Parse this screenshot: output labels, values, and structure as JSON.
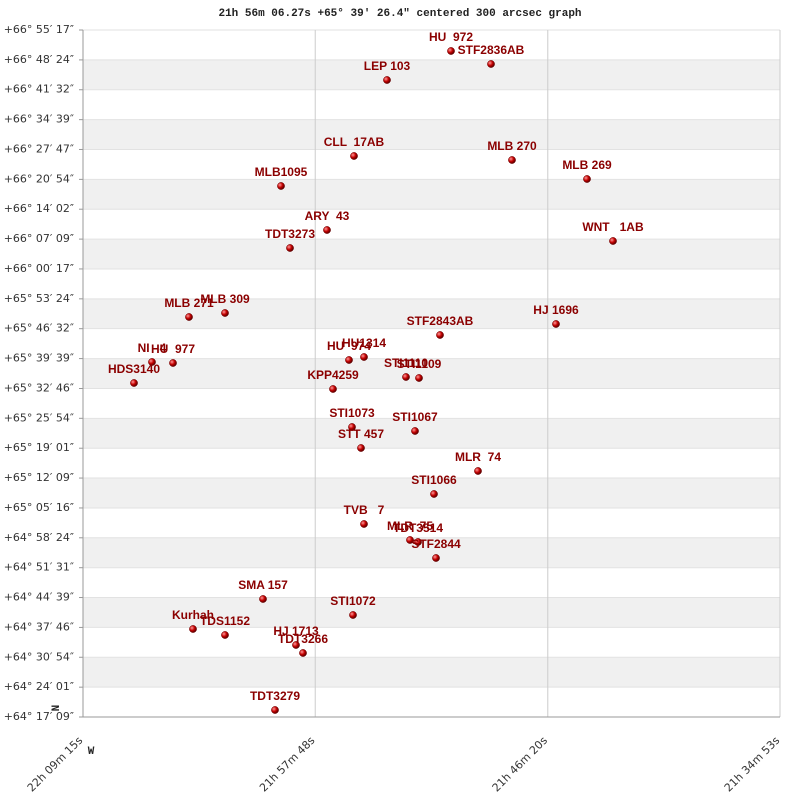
{
  "chart_data": {
    "type": "scatter",
    "title": "21h 56m 06.27s +65° 39′ 26.4″ centered 300 arcsec graph",
    "north_label": "N",
    "west_label": "W",
    "color": "#c40000",
    "label_color": "#8b0000",
    "grid": true,
    "banded": true,
    "labels": [
      "HU  972",
      "STF2836AB",
      "LEP 103",
      "CLL  17AB",
      "MLB 270",
      "MLB 269",
      "MLB1095",
      "ARY  43",
      "TDT3273",
      "WNT   1AB",
      "MLB 309",
      "MLB 271",
      "STF2843AB",
      "HJ 1696",
      "NI   4",
      "HU  977",
      "HDS3140",
      "HU  974",
      "HU1314",
      "KPP4259",
      "STI1110",
      "STI1109",
      "STI1073",
      "STI1067",
      "STT 457",
      "MLR  74",
      "STI1066",
      "TVB   7",
      "MLR  75",
      "TDT3514",
      "STF2844",
      "SMA 157",
      "STI1072",
      "Kurhah",
      "TDS1152",
      "HJ 1713",
      "TDT3266",
      "TDT3279"
    ],
    "x": [
      21.85175,
      21.81888,
      21.90435,
      21.93147,
      21.80163,
      21.73999,
      21.99146,
      21.95366,
      21.98406,
      21.71863,
      22.03748,
      22.06706,
      21.86079,
      21.76547,
      22.09747,
      22.08021,
      22.11226,
      21.93558,
      21.92325,
      21.94872,
      21.88874,
      21.87805,
      21.93311,
      21.88134,
      21.92572,
      21.82957,
      21.86573,
      21.92325,
      21.88545,
      21.87887,
      21.86408,
      22.00625,
      21.93229,
      22.06377,
      22.03748,
      21.97913,
      21.97338,
      21.99639
    ],
    "values": [
      66.84083,
      66.79096,
      66.72957,
      66.43802,
      66.42267,
      66.34978,
      66.32293,
      66.15413,
      66.08508,
      66.11193,
      65.83572,
      65.82037,
      65.75132,
      65.79352,
      65.64774,
      65.6439,
      65.56718,
      65.65541,
      65.6669,
      65.54416,
      65.59019,
      65.58636,
      65.39838,
      65.38303,
      65.31782,
      65.22958,
      65.14134,
      65.02626,
      64.96488,
      64.9572,
      64.89582,
      64.73854,
      64.67715,
      64.62345,
      64.60043,
      64.56207,
      64.53138,
      64.31271
    ],
    "xlim": [
      22.15417,
      21.58139
    ],
    "xticks": [
      {
        "value": 22.15417,
        "label": "22h 09m 15s"
      },
      {
        "value": 21.96333,
        "label": "21h 57m 48s"
      },
      {
        "value": 21.77222,
        "label": "21h 46m 20s"
      },
      {
        "value": 21.58139,
        "label": "21h 34m 53s"
      }
    ],
    "ylim": [
      64.28583,
      66.92139
    ],
    "yticks": [
      {
        "value": 66.92139,
        "label": "+66° 55′ 17″"
      },
      {
        "value": 66.80667,
        "label": "+66° 48′ 24″"
      },
      {
        "value": 66.69222,
        "label": "+66° 41′ 32″"
      },
      {
        "value": 66.5775,
        "label": "+66° 34′ 39″"
      },
      {
        "value": 66.46306,
        "label": "+66° 27′ 47″"
      },
      {
        "value": 66.34833,
        "label": "+66° 20′ 54″"
      },
      {
        "value": 66.23389,
        "label": "+66° 14′ 02″"
      },
      {
        "value": 66.11917,
        "label": "+66° 07′ 09″"
      },
      {
        "value": 66.00472,
        "label": "+66° 00′ 17″"
      },
      {
        "value": 65.89,
        "label": "+65° 53′ 24″"
      },
      {
        "value": 65.77556,
        "label": "+65° 46′ 32″"
      },
      {
        "value": 65.66083,
        "label": "+65° 39′ 39″"
      },
      {
        "value": 65.54611,
        "label": "+65° 32′ 46″"
      },
      {
        "value": 65.43167,
        "label": "+65° 25′ 54″"
      },
      {
        "value": 65.31694,
        "label": "+65° 19′ 01″"
      },
      {
        "value": 65.2025,
        "label": "+65° 12′ 09″"
      },
      {
        "value": 65.08778,
        "label": "+65° 05′ 16″"
      },
      {
        "value": 64.97333,
        "label": "+64° 58′ 24″"
      },
      {
        "value": 64.85861,
        "label": "+64° 51′ 31″"
      },
      {
        "value": 64.74417,
        "label": "+64° 44′ 39″"
      },
      {
        "value": 64.62944,
        "label": "+64° 37′ 46″"
      },
      {
        "value": 64.515,
        "label": "+64° 30′ 54″"
      },
      {
        "value": 64.40028,
        "label": "+64° 24′ 01″"
      },
      {
        "value": 64.28583,
        "label": "+64° 17′ 09″"
      }
    ]
  }
}
